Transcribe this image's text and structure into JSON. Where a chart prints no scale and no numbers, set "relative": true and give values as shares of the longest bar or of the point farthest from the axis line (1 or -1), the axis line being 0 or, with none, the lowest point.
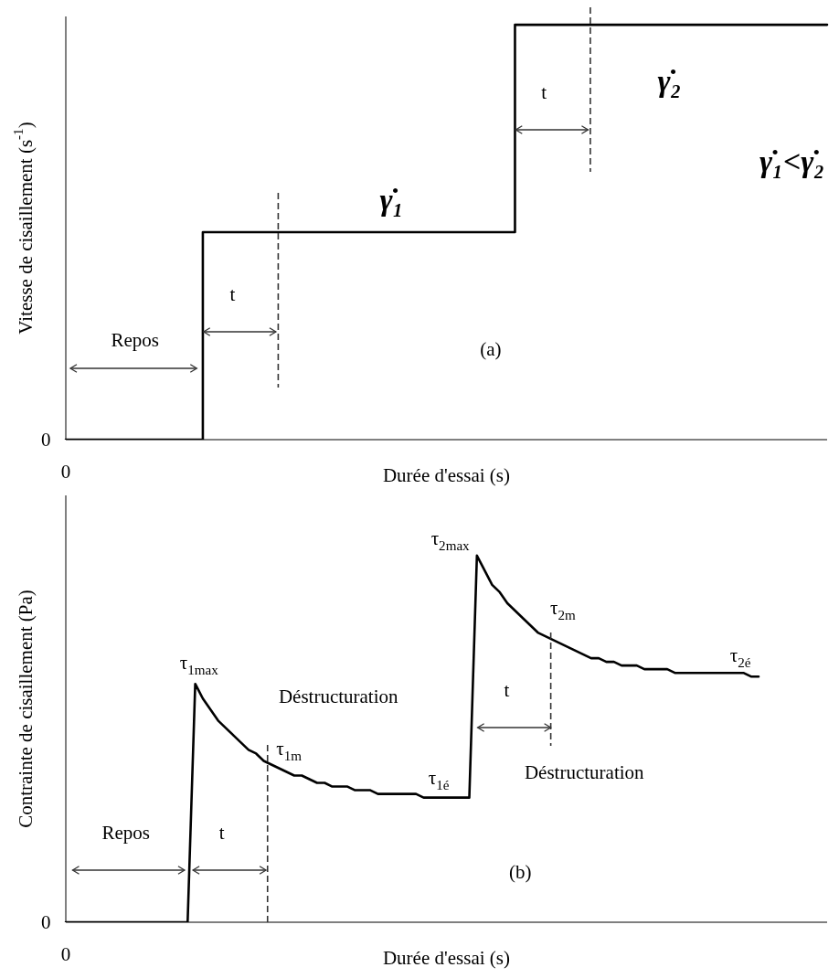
{
  "chart_data": [
    {
      "type": "step",
      "relative": true,
      "xlabel": "Durée d'essai (s)",
      "ylabel": "Vitesse de cisaillement (s$^{-1}$)",
      "color": "#000000",
      "categories": [
        null,
        null,
        null,
        null,
        null,
        null,
        null,
        null,
        null,
        null,
        null,
        null,
        null,
        null,
        null,
        null,
        null,
        null,
        null,
        null,
        null,
        null,
        null,
        null,
        null,
        null,
        null,
        null,
        null,
        null,
        null,
        null,
        null,
        null,
        null,
        null,
        null,
        null,
        null,
        null,
        null,
        null,
        null,
        null,
        null,
        null,
        null,
        null,
        null,
        null,
        null,
        null,
        null,
        null,
        null,
        null,
        null,
        null,
        null,
        null,
        null,
        null,
        null,
        null,
        null,
        null,
        null,
        null,
        null,
        null,
        null,
        null,
        null,
        null,
        null,
        null,
        null,
        null,
        null,
        null,
        null,
        null,
        null,
        null,
        null,
        null,
        null,
        null,
        null,
        null,
        null,
        null,
        null,
        null,
        null,
        null,
        null,
        null,
        null,
        null,
        null
      ],
      "values": [
        0,
        0,
        0,
        0,
        0,
        0,
        0,
        0,
        0,
        0,
        0,
        0,
        0,
        0,
        0,
        0,
        0,
        0,
        0.5,
        0.5,
        0.5,
        0.5,
        0.5,
        0.5,
        0.5,
        0.5,
        0.5,
        0.5,
        0.5,
        0.5,
        0.5,
        0.5,
        0.5,
        0.5,
        0.5,
        0.5,
        0.5,
        0.5,
        0.5,
        0.5,
        0.5,
        0.5,
        0.5,
        0.5,
        0.5,
        0.5,
        0.5,
        0.5,
        0.5,
        0.5,
        0.5,
        0.5,
        0.5,
        0.5,
        0.5,
        0.5,
        0.5,
        0.5,
        0.5,
        1,
        1,
        1,
        1,
        1,
        1,
        1,
        1,
        1,
        1,
        1,
        1,
        1,
        1,
        1,
        1,
        1,
        1,
        1,
        1,
        1,
        1,
        1,
        1,
        1,
        1,
        1,
        1,
        1,
        1,
        1,
        1,
        1,
        1,
        1,
        1,
        1,
        1,
        1,
        1,
        1,
        1
      ],
      "annotations": [
        "Repos",
        "t",
        "t",
        "(a)",
        "γ̇₁",
        "γ̇₂",
        "γ̇₁<γ̇₂",
        "0",
        "0"
      ]
    },
    {
      "type": "line",
      "relative": true,
      "xlabel": "Durée d'essai (s)",
      "ylabel": "Contrainte de cisaillement (Pa)",
      "color": "#000000",
      "categories": [
        null,
        null,
        null,
        null,
        null,
        null,
        null,
        null,
        null,
        null,
        null,
        null,
        null,
        null,
        null,
        null,
        null,
        null,
        null,
        null,
        null,
        null,
        null,
        null,
        null,
        null,
        null,
        null,
        null,
        null,
        null,
        null,
        null,
        null,
        null,
        null,
        null,
        null,
        null,
        null,
        null,
        null,
        null,
        null,
        null,
        null,
        null,
        null,
        null,
        null,
        null,
        null,
        null,
        null,
        null,
        null,
        null,
        null,
        null,
        null,
        null,
        null,
        null,
        null,
        null,
        null,
        null,
        null,
        null,
        null,
        null,
        null,
        null,
        null,
        null,
        null,
        null,
        null,
        null,
        null,
        null,
        null,
        null,
        null,
        null,
        null,
        null,
        null,
        null,
        null,
        null,
        null,
        null,
        null,
        null,
        null,
        null,
        null,
        null,
        null,
        null
      ],
      "values": [
        0,
        0,
        0,
        0,
        0,
        0,
        0,
        0,
        0,
        0,
        0,
        0,
        0,
        0,
        0,
        0,
        0,
        0.65,
        0.61,
        0.58,
        0.55,
        0.53,
        0.51,
        0.49,
        0.47,
        0.46,
        0.44,
        0.43,
        0.42,
        0.41,
        0.4,
        0.4,
        0.39,
        0.38,
        0.38,
        0.37,
        0.37,
        0.37,
        0.36,
        0.36,
        0.36,
        0.35,
        0.35,
        0.35,
        0.35,
        0.35,
        0.35,
        0.34,
        0.34,
        0.34,
        0.34,
        0.34,
        0.34,
        0.34,
        1,
        0.96,
        0.92,
        0.9,
        0.87,
        0.85,
        0.83,
        0.81,
        0.79,
        0.78,
        0.77,
        0.76,
        0.75,
        0.74,
        0.73,
        0.72,
        0.72,
        0.71,
        0.71,
        0.7,
        0.7,
        0.7,
        0.69,
        0.69,
        0.69,
        0.69,
        0.68,
        0.68,
        0.68,
        0.68,
        0.68,
        0.68,
        0.68,
        0.68,
        0.68,
        0.68,
        0.67,
        0.67,
        null,
        null,
        null,
        null,
        null,
        null,
        null,
        null,
        null
      ],
      "annotations": [
        "τ$_{1max}$",
        "Déstructuration",
        "τ$_{1m}$",
        "τ$_{1é}$",
        "τ$_{2max}$",
        "τ$_{2m}$",
        "τ$_{2é}$",
        "t",
        "Déstructuration",
        "Repos",
        "t",
        "(b)",
        "0",
        "0"
      ]
    }
  ]
}
